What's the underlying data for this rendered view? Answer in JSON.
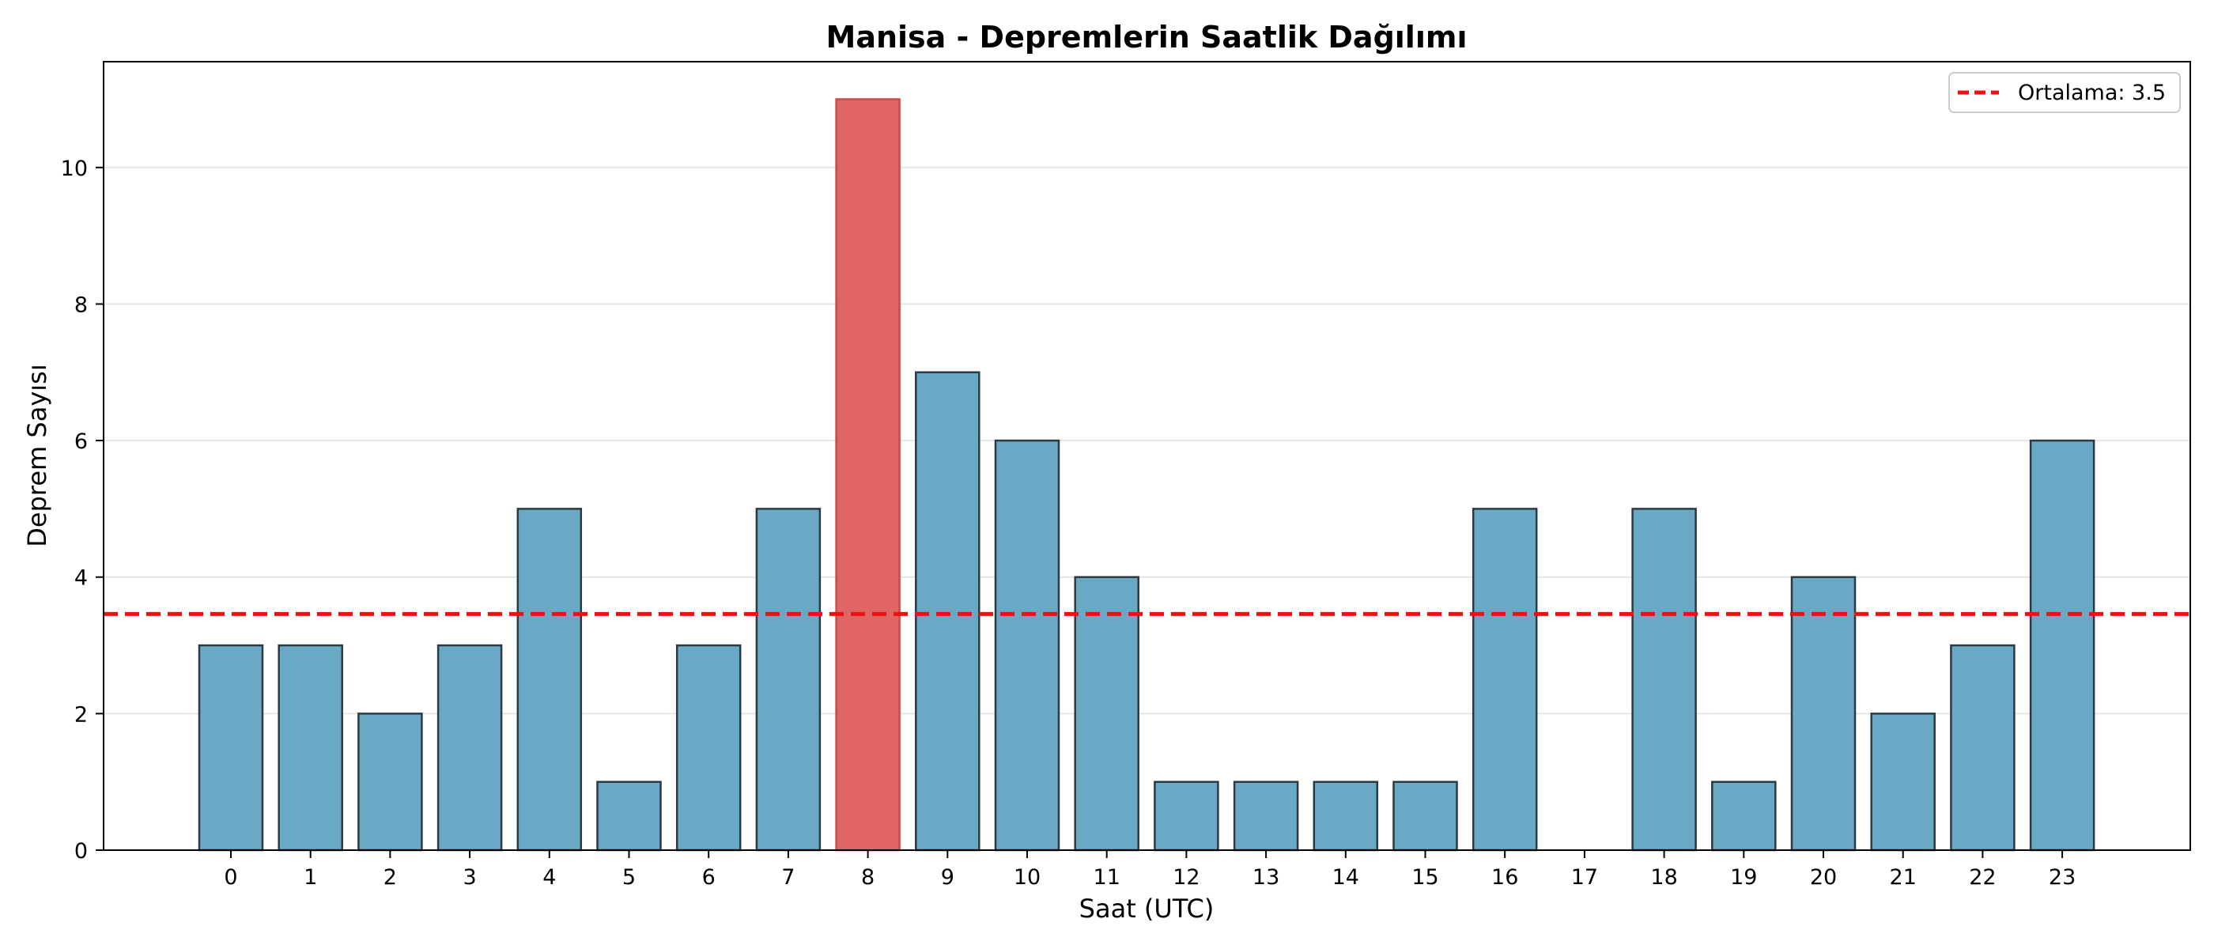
{
  "chart_data": {
    "type": "bar",
    "title": "Manisa - Depremlerin Saatlik Dağılımı",
    "xlabel": "Saat (UTC)",
    "ylabel": "Deprem Sayısı",
    "categories": [
      "0",
      "1",
      "2",
      "3",
      "4",
      "5",
      "6",
      "7",
      "8",
      "9",
      "10",
      "11",
      "12",
      "13",
      "14",
      "15",
      "16",
      "17",
      "18",
      "19",
      "20",
      "21",
      "22",
      "23"
    ],
    "values": [
      3,
      3,
      2,
      3,
      5,
      1,
      3,
      5,
      11,
      7,
      6,
      4,
      1,
      1,
      1,
      1,
      5,
      0,
      5,
      1,
      4,
      2,
      3,
      6
    ],
    "highlight_index": 8,
    "ylim": [
      0,
      11.55
    ],
    "yticks": [
      0,
      2,
      4,
      6,
      8,
      10
    ],
    "grid": "y",
    "mean_line": {
      "value": 3.46,
      "label": "Ortalama: 3.5"
    },
    "legend_position": "top-right",
    "colors": {
      "bar": "#6aa9c6",
      "bar_edge": "#2b3a42",
      "highlight": "#e06666",
      "highlight_edge": "#c94a4a",
      "mean_line": "#ee1111"
    }
  }
}
